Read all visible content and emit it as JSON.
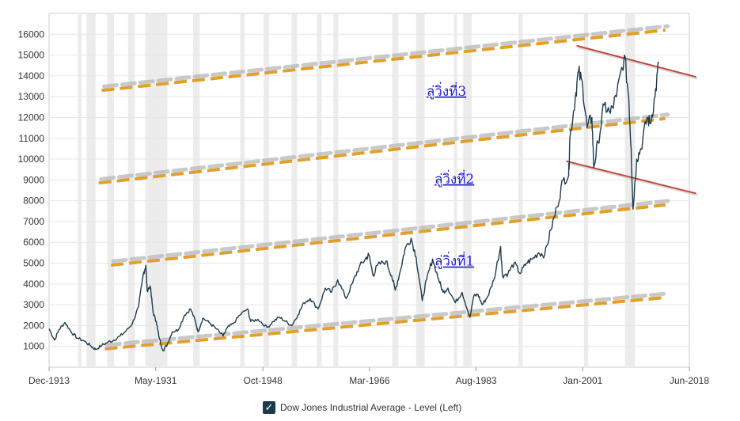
{
  "chart_data": {
    "type": "line",
    "title": "",
    "xlabel": "",
    "ylabel": "",
    "ylim": [
      0,
      17000
    ],
    "yticks": [
      1000,
      2000,
      3000,
      4000,
      5000,
      6000,
      7000,
      8000,
      9000,
      10000,
      11000,
      12000,
      13000,
      14000,
      15000,
      16000
    ],
    "xlim": [
      1913.9,
      2018.4
    ],
    "xticks": [
      {
        "x": 1913.9,
        "label": "Dec-1913"
      },
      {
        "x": 1931.3,
        "label": "May-1931"
      },
      {
        "x": 1948.8,
        "label": "Oct-1948"
      },
      {
        "x": 1966.2,
        "label": "Mar-1966"
      },
      {
        "x": 1983.6,
        "label": "Aug-1983"
      },
      {
        "x": 2001.0,
        "label": "Jan-2001"
      },
      {
        "x": 2018.4,
        "label": "Jun-2018"
      }
    ],
    "grid": true,
    "legend_position": "bottom-center",
    "legend": {
      "label": "Dow Jones Industrial Average - Level (Left)",
      "checked": true
    },
    "series": [
      {
        "name": "Dow Jones Industrial Average - Level (Left)",
        "color": "#1d3a4d",
        "points": [
          [
            1913.9,
            1850
          ],
          [
            1914.8,
            1300
          ],
          [
            1915.5,
            1800
          ],
          [
            1916.5,
            2150
          ],
          [
            1917.5,
            1700
          ],
          [
            1918.5,
            1400
          ],
          [
            1919.7,
            1250
          ],
          [
            1920.8,
            1000
          ],
          [
            1921.5,
            850
          ],
          [
            1922.5,
            1050
          ],
          [
            1923.5,
            1200
          ],
          [
            1924.5,
            1300
          ],
          [
            1925.5,
            1500
          ],
          [
            1926.5,
            1750
          ],
          [
            1927.5,
            2100
          ],
          [
            1928.5,
            2900
          ],
          [
            1929.3,
            4500
          ],
          [
            1929.7,
            4900
          ],
          [
            1929.9,
            3700
          ],
          [
            1930.4,
            3900
          ],
          [
            1930.9,
            2600
          ],
          [
            1931.4,
            2200
          ],
          [
            1931.8,
            1500
          ],
          [
            1932.5,
            800
          ],
          [
            1933.2,
            1100
          ],
          [
            1934.0,
            1700
          ],
          [
            1935.0,
            1800
          ],
          [
            1936.0,
            2500
          ],
          [
            1937.0,
            2800
          ],
          [
            1937.8,
            2200
          ],
          [
            1938.2,
            1700
          ],
          [
            1939.0,
            2350
          ],
          [
            1940.0,
            2150
          ],
          [
            1941.0,
            1900
          ],
          [
            1942.3,
            1500
          ],
          [
            1943.0,
            1900
          ],
          [
            1944.0,
            2100
          ],
          [
            1945.0,
            2500
          ],
          [
            1946.3,
            2800
          ],
          [
            1946.8,
            2200
          ],
          [
            1948.0,
            2300
          ],
          [
            1949.5,
            1900
          ],
          [
            1950.5,
            2200
          ],
          [
            1951.5,
            2400
          ],
          [
            1952.5,
            2200
          ],
          [
            1953.5,
            2000
          ],
          [
            1954.5,
            2500
          ],
          [
            1955.5,
            3100
          ],
          [
            1956.5,
            3300
          ],
          [
            1957.8,
            2800
          ],
          [
            1959.0,
            3800
          ],
          [
            1960.0,
            3600
          ],
          [
            1961.0,
            4200
          ],
          [
            1962.4,
            3300
          ],
          [
            1963.5,
            4100
          ],
          [
            1964.5,
            4800
          ],
          [
            1965.5,
            5200
          ],
          [
            1966.1,
            5400
          ],
          [
            1966.8,
            4400
          ],
          [
            1967.5,
            4900
          ],
          [
            1968.9,
            5100
          ],
          [
            1969.8,
            4400
          ],
          [
            1970.4,
            3700
          ],
          [
            1971.2,
            4600
          ],
          [
            1972.0,
            5700
          ],
          [
            1973.0,
            6200
          ],
          [
            1973.8,
            5300
          ],
          [
            1974.8,
            3200
          ],
          [
            1975.5,
            4200
          ],
          [
            1976.5,
            5200
          ],
          [
            1977.5,
            4200
          ],
          [
            1978.2,
            3600
          ],
          [
            1979.0,
            3800
          ],
          [
            1980.2,
            3100
          ],
          [
            1981.3,
            3600
          ],
          [
            1982.6,
            2400
          ],
          [
            1983.2,
            3400
          ],
          [
            1983.9,
            3500
          ],
          [
            1984.6,
            3000
          ],
          [
            1985.5,
            3400
          ],
          [
            1986.5,
            4200
          ],
          [
            1987.6,
            5800
          ],
          [
            1987.9,
            4400
          ],
          [
            1988.8,
            4500
          ],
          [
            1989.8,
            5000
          ],
          [
            1990.8,
            4500
          ],
          [
            1991.8,
            5000
          ],
          [
            1992.8,
            5200
          ],
          [
            1993.8,
            5500
          ],
          [
            1994.8,
            5400
          ],
          [
            1995.8,
            6600
          ],
          [
            1996.8,
            7700
          ],
          [
            1997.8,
            9000
          ],
          [
            1998.7,
            9200
          ],
          [
            1998.9,
            11000
          ],
          [
            1999.8,
            13000
          ],
          [
            2000.3,
            14200
          ],
          [
            2001.0,
            13500
          ],
          [
            2001.7,
            11500
          ],
          [
            2002.5,
            12000
          ],
          [
            2002.8,
            9600
          ],
          [
            2003.5,
            10800
          ],
          [
            2004.5,
            12600
          ],
          [
            2005.5,
            12200
          ],
          [
            2006.5,
            13000
          ],
          [
            2007.8,
            15000
          ],
          [
            2008.5,
            13000
          ],
          [
            2008.9,
            10500
          ],
          [
            2009.2,
            7600
          ],
          [
            2009.8,
            10000
          ],
          [
            2010.5,
            10500
          ],
          [
            2011.5,
            12000
          ],
          [
            2012.0,
            11700
          ],
          [
            2012.8,
            13000
          ],
          [
            2013.4,
            14600
          ]
        ]
      }
    ],
    "recession_bands": [
      [
        1918.6,
        1919.2
      ],
      [
        1920.0,
        1921.5
      ],
      [
        1923.4,
        1924.5
      ],
      [
        1926.8,
        1927.9
      ],
      [
        1929.6,
        1933.2
      ],
      [
        1937.4,
        1938.5
      ],
      [
        1945.1,
        1945.8
      ],
      [
        1948.9,
        1949.8
      ],
      [
        1953.5,
        1954.4
      ],
      [
        1957.6,
        1958.4
      ],
      [
        1960.3,
        1961.1
      ],
      [
        1969.9,
        1970.9
      ],
      [
        1973.8,
        1975.2
      ],
      [
        1980.0,
        1980.5
      ],
      [
        1981.5,
        1982.9
      ],
      [
        1990.5,
        1991.2
      ],
      [
        2001.2,
        2001.9
      ],
      [
        2007.9,
        2009.5
      ]
    ],
    "trend_channel_lines": [
      {
        "x": [
          1923.0,
          2014.5
        ],
        "y": [
          880,
          3350
        ],
        "color": "#e0a030"
      },
      {
        "x": [
          1924.0,
          2014.5
        ],
        "y": [
          4900,
          7800
        ],
        "color": "#e0a030"
      },
      {
        "x": [
          1922.0,
          2014.5
        ],
        "y": [
          8850,
          11950
        ],
        "color": "#e0a030"
      },
      {
        "x": [
          1922.5,
          2014.5
        ],
        "y": [
          13300,
          16200
        ],
        "color": "#e0a030"
      }
    ],
    "resistance_lines": [
      {
        "x": [
          1998.3,
          2019.5
        ],
        "y": [
          9900,
          8350
        ],
        "color": "#c0473a"
      },
      {
        "x": [
          2000.0,
          2019.5
        ],
        "y": [
          15450,
          13950
        ],
        "color": "#c0473a"
      }
    ],
    "annotations": [
      {
        "text": "ลู่วิ่งที่3",
        "x": 1975.5,
        "y": 13050
      },
      {
        "text": "ลู่วิ่งที่2",
        "x": 1976.8,
        "y": 8830
      },
      {
        "text": "ลู่วิ่งที่1",
        "x": 1976.8,
        "y": 4880
      }
    ]
  }
}
